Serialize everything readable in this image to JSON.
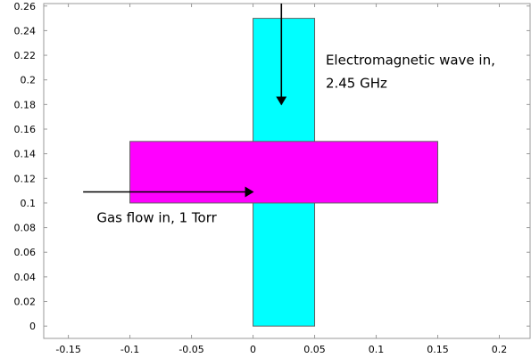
{
  "chart_data": {
    "type": "geometry-plot",
    "xlim": [
      -0.17,
      0.225
    ],
    "ylim": [
      -0.01,
      0.262
    ],
    "x_ticks": [
      -0.15,
      -0.1,
      -0.05,
      0,
      0.05,
      0.1,
      0.15,
      0.2
    ],
    "x_tick_labels": [
      "-0.15",
      "-0.1",
      "-0.05",
      "0",
      "0.05",
      "0.1",
      "0.15",
      "0.2"
    ],
    "y_ticks": [
      0,
      0.02,
      0.04,
      0.06,
      0.08,
      0.1,
      0.12,
      0.14,
      0.16,
      0.18,
      0.2,
      0.22,
      0.24,
      0.26
    ],
    "y_tick_labels": [
      "0",
      "0.02",
      "0.04",
      "0.06",
      "0.08",
      "0.1",
      "0.12",
      "0.14",
      "0.16",
      "0.18",
      "0.2",
      "0.22",
      "0.24",
      "0.26"
    ],
    "grid": false,
    "regions": [
      {
        "id": "waveguide",
        "x": [
          0,
          0.05
        ],
        "y": [
          0,
          0.25
        ],
        "color": "#00ffff"
      },
      {
        "id": "gas-channel",
        "x": [
          -0.1,
          0.15
        ],
        "y": [
          0.1,
          0.15
        ],
        "color": "#ff00ff"
      }
    ],
    "arrows": [
      {
        "id": "wave-arrow",
        "from": [
          0.023,
          0.262
        ],
        "to": [
          0.023,
          0.18
        ]
      },
      {
        "id": "gas-arrow",
        "from": [
          -0.138,
          0.109
        ],
        "to": [
          0,
          0.109
        ]
      }
    ],
    "annotations": [
      {
        "id": "wave-annotation",
        "lines": [
          "Electromagnetic wave in,",
          "2.45 GHz"
        ],
        "x": 0.059,
        "y": [
          0.2125,
          0.1935
        ]
      },
      {
        "id": "gas-annotation",
        "lines": [
          "Gas flow in, 1 Torr"
        ],
        "x": -0.127,
        "y": [
          0.0845
        ]
      }
    ]
  }
}
